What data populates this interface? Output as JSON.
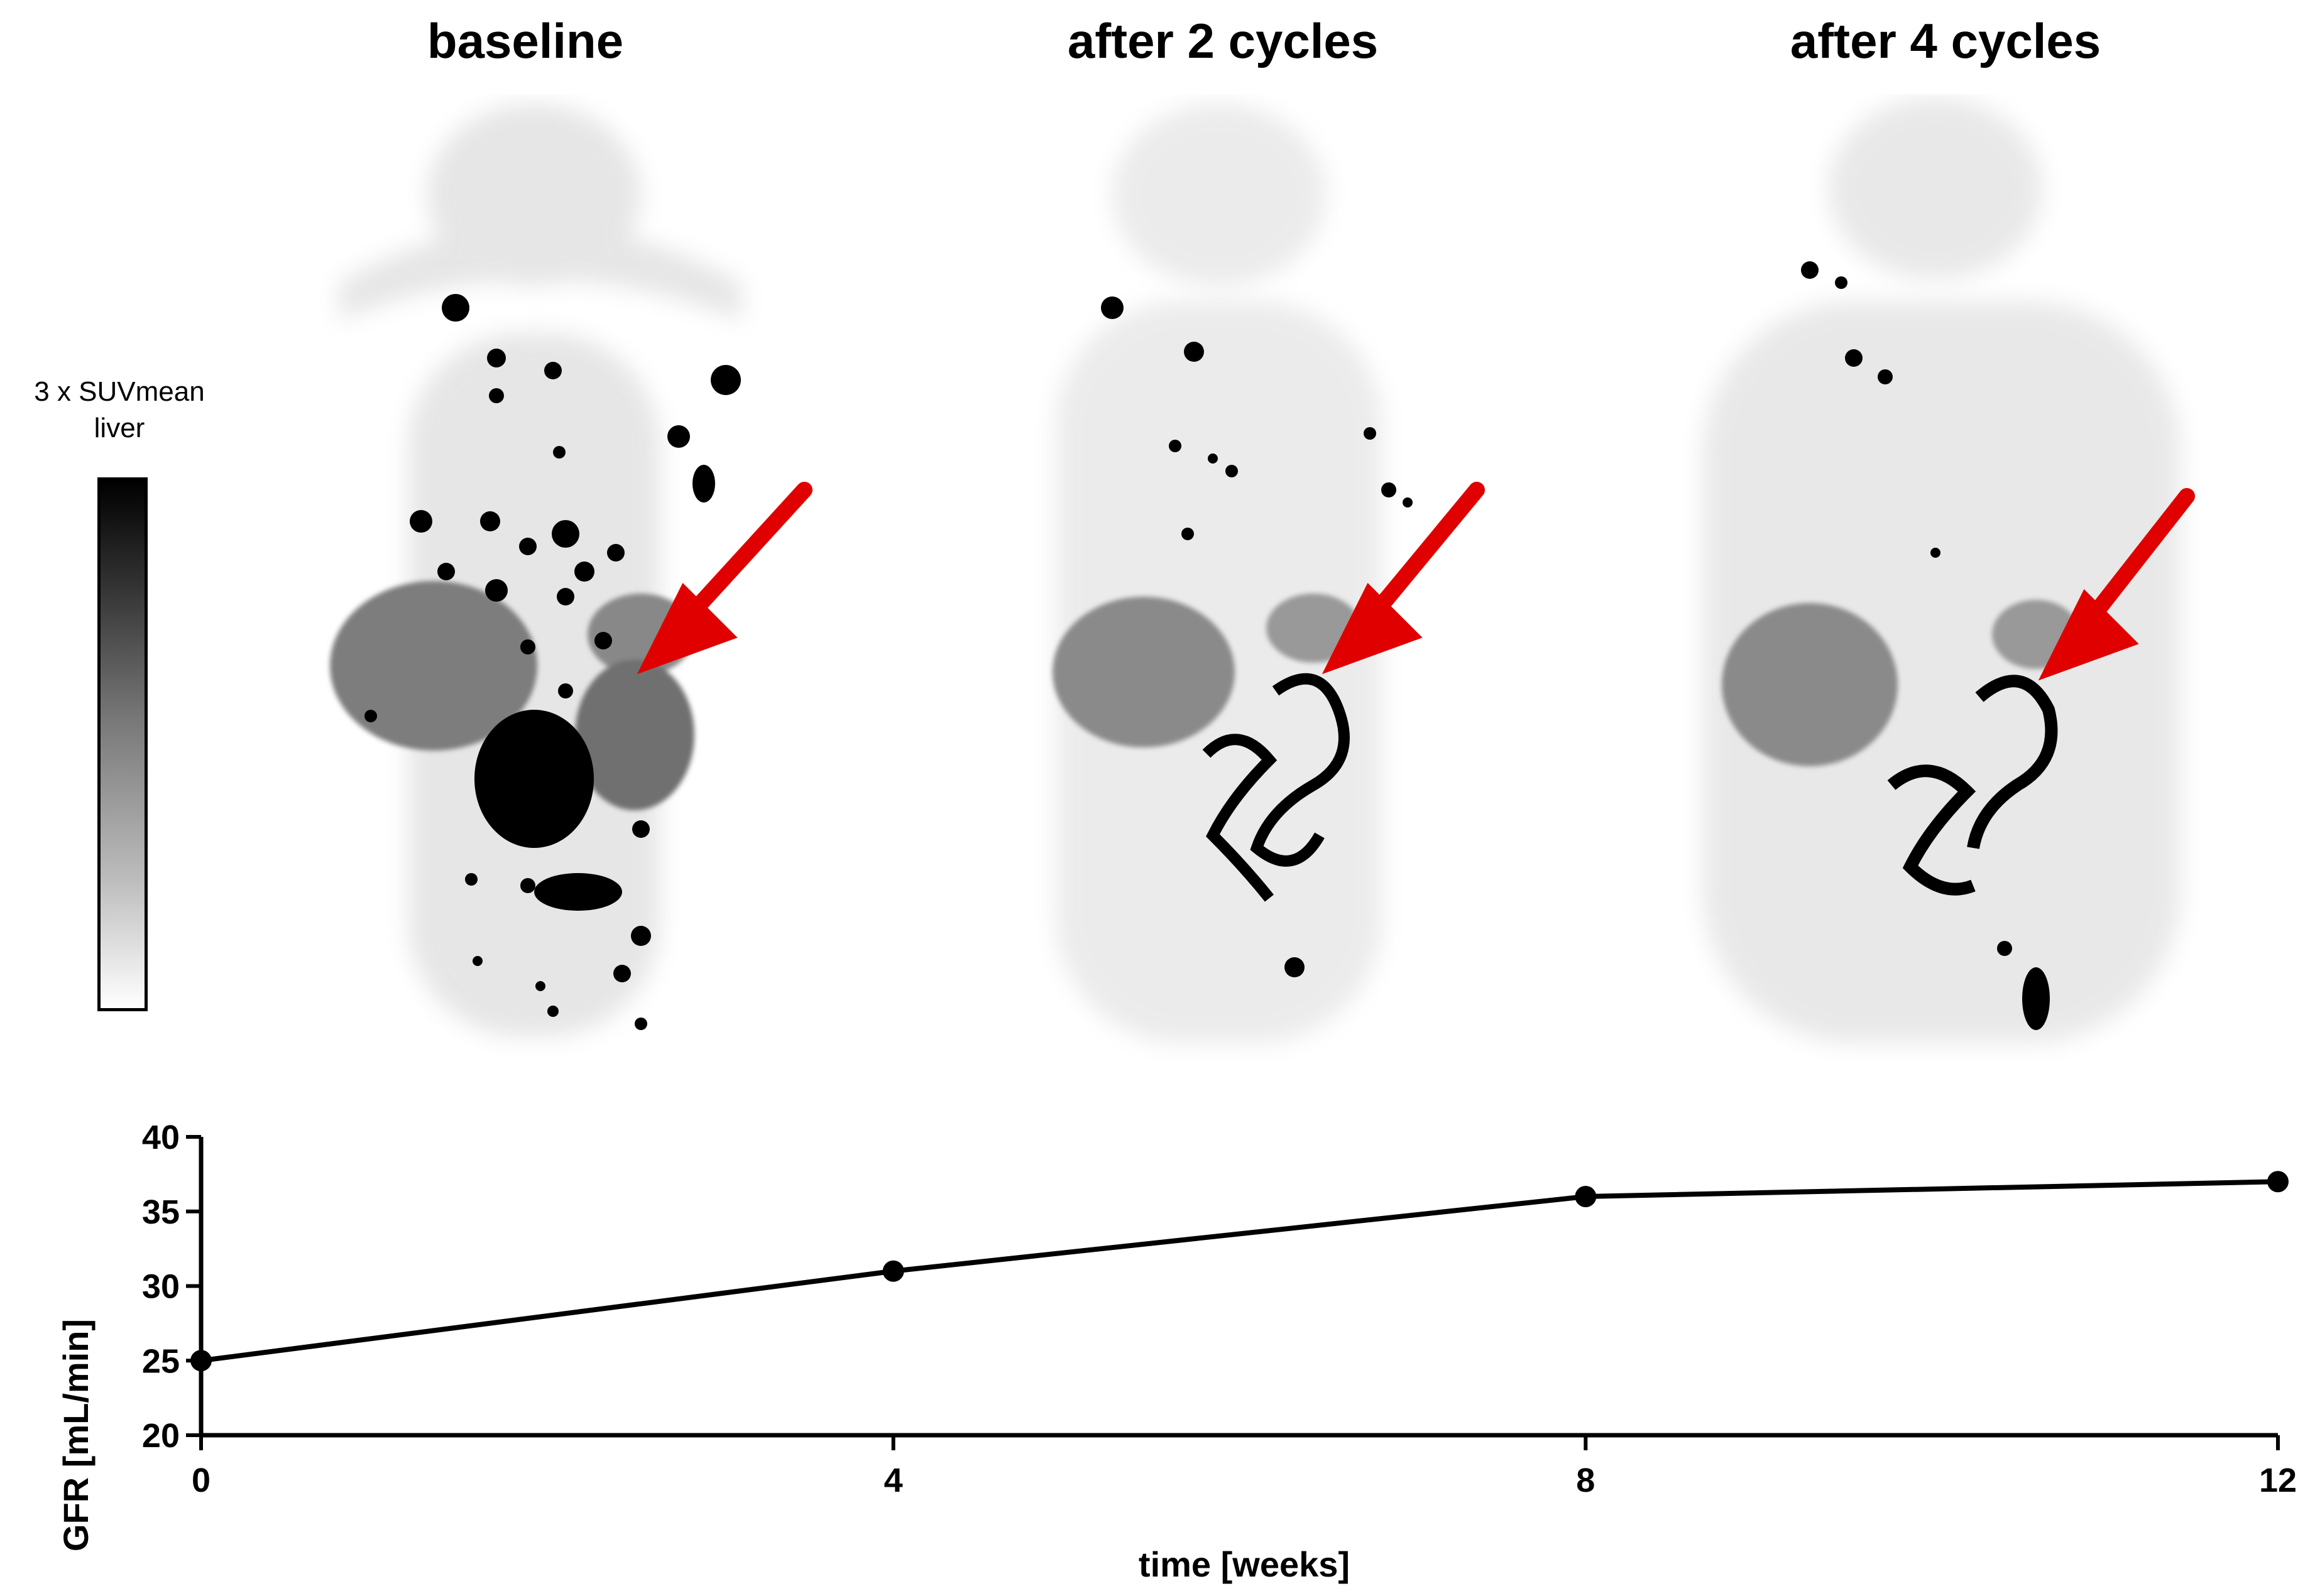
{
  "panels": {
    "baseline": "baseline",
    "cycle2": "after 2 cycles",
    "cycle4": "after 4 cycles"
  },
  "scale": {
    "label_line1": "3 x SUVmean",
    "label_line2": "liver"
  },
  "colors": {
    "arrow": "#e00000",
    "uptake": "#000000",
    "organ": "#8a8a8a"
  },
  "chart_data": {
    "type": "line",
    "x": [
      0,
      4,
      8,
      12
    ],
    "series": [
      {
        "values": [
          25,
          31,
          36,
          37
        ]
      }
    ],
    "xlabel": "time [weeks]",
    "ylabel": "GFR [mL/min]",
    "xticks": [
      "0",
      "4",
      "8",
      "12"
    ],
    "yticks": [
      "20",
      "25",
      "30",
      "35",
      "40"
    ],
    "xlim": [
      0,
      12
    ],
    "ylim": [
      20,
      40
    ],
    "grid": false,
    "legend": "none"
  }
}
